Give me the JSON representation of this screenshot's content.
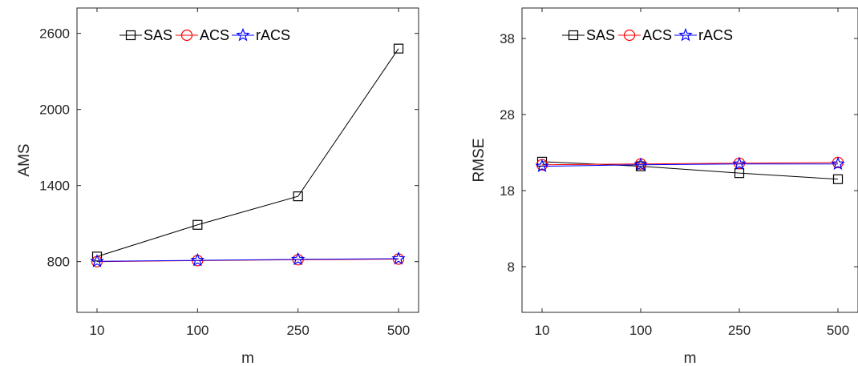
{
  "colors": {
    "SAS": "#000000",
    "ACS": "#ff0000",
    "rACS": "#0000ff",
    "axis": "#262626"
  },
  "chart_data": [
    {
      "type": "line",
      "xlabel": "m",
      "ylabel": "AMS",
      "categories": [
        "10",
        "100",
        "250",
        "500"
      ],
      "ylim": [
        400,
        2800
      ],
      "yticks": [
        800,
        1400,
        2000,
        2600
      ],
      "grid": false,
      "legend": {
        "position": "top-right",
        "orientation": "horizontal"
      },
      "series": [
        {
          "name": "SAS",
          "marker": "square",
          "values": [
            840,
            1090,
            1315,
            2480
          ]
        },
        {
          "name": "ACS",
          "marker": "circle",
          "values": [
            800,
            808,
            815,
            820
          ]
        },
        {
          "name": "rACS",
          "marker": "star",
          "values": [
            802,
            810,
            818,
            823
          ]
        }
      ]
    },
    {
      "type": "line",
      "xlabel": "m",
      "ylabel": "RMSE",
      "categories": [
        "10",
        "100",
        "250",
        "500"
      ],
      "ylim": [
        2,
        42
      ],
      "yticks": [
        8,
        18,
        28,
        38
      ],
      "grid": false,
      "legend": {
        "position": "top-right",
        "orientation": "horizontal"
      },
      "series": [
        {
          "name": "SAS",
          "marker": "square",
          "values": [
            21.8,
            21.2,
            20.3,
            19.5
          ]
        },
        {
          "name": "ACS",
          "marker": "circle",
          "values": [
            21.4,
            21.5,
            21.6,
            21.7
          ]
        },
        {
          "name": "rACS",
          "marker": "star",
          "values": [
            21.2,
            21.4,
            21.5,
            21.5
          ]
        }
      ]
    }
  ]
}
